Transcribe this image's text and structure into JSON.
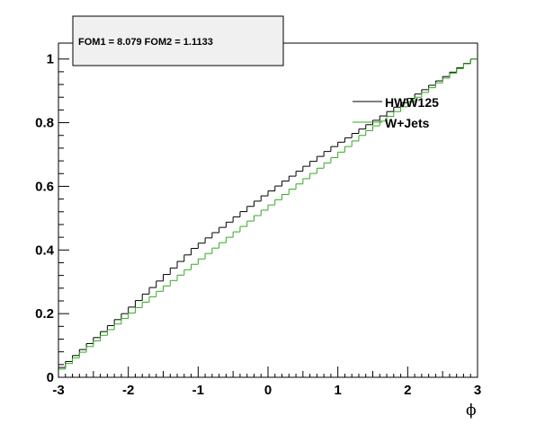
{
  "chart_data": {
    "type": "line",
    "style": "step",
    "xlabel": "ϕ",
    "ylabel": "",
    "xlim": [
      -3,
      3
    ],
    "ylim": [
      0,
      1.05
    ],
    "x_ticks": [
      -3,
      -2,
      -1,
      0,
      1,
      2,
      3
    ],
    "x_tick_labels": [
      "-3",
      "-2",
      "-1",
      "0",
      "1",
      "2",
      "3"
    ],
    "y_ticks": [
      0,
      0.2,
      0.4,
      0.6,
      0.8,
      1
    ],
    "y_tick_labels": [
      "0",
      "0.2",
      "0.4",
      "0.6",
      "0.8",
      "1"
    ],
    "stats_box": "FOM1 = 8.079 FOM2 = 1.1133",
    "legend_position": "top-right",
    "colors": {
      "hww": "#000000",
      "wjets": "#33aa22",
      "stats_fill": "#f0f0f0"
    },
    "bins": {
      "count": 60,
      "min": -3,
      "max": 3
    },
    "series": [
      {
        "name": "HWW125",
        "color": "#000000",
        "start": 0.012,
        "end": 1.0,
        "mid_points": [
          [
            -2.0,
            0.2
          ],
          [
            -1.0,
            0.405
          ],
          [
            0.0,
            0.57
          ],
          [
            1.0,
            0.725
          ],
          [
            1.4,
            0.78
          ]
        ]
      },
      {
        "name": "W+Jets",
        "color": "#33aa22",
        "start": 0.008,
        "end": 1.0,
        "mid_points": [
          [
            -2.0,
            0.185
          ],
          [
            -1.0,
            0.355
          ],
          [
            0.0,
            0.525
          ],
          [
            1.0,
            0.69
          ],
          [
            1.4,
            0.76
          ]
        ]
      }
    ]
  }
}
